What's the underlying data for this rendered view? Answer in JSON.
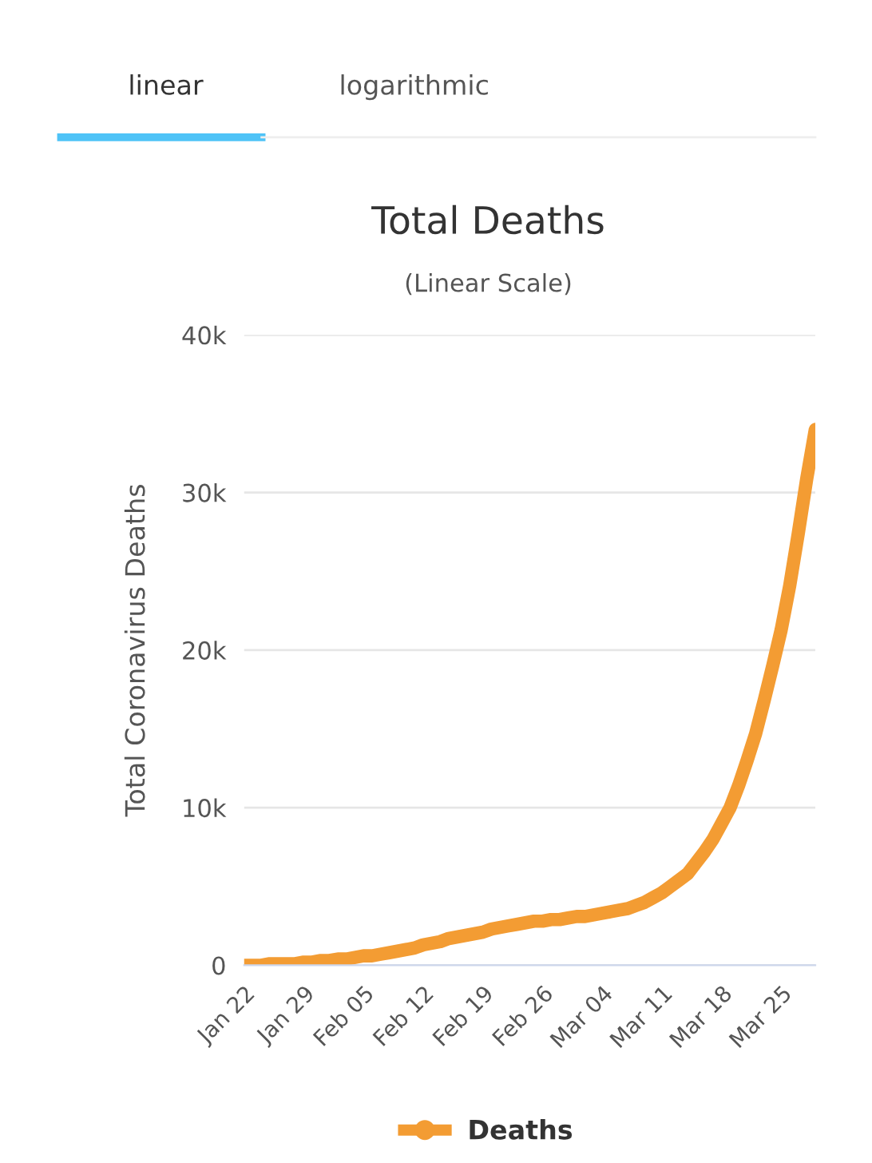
{
  "chart_data": {
    "type": "line",
    "title": "Total Deaths",
    "subtitle": "(Linear Scale)",
    "ylabel": "Total Coronavirus Deaths",
    "annotations": [
      "linear",
      "logarithmic"
    ],
    "categories": [
      "Jan 22",
      null,
      null,
      null,
      null,
      null,
      null,
      "Jan 29",
      null,
      null,
      null,
      null,
      null,
      null,
      "Feb 05",
      null,
      null,
      null,
      null,
      null,
      null,
      "Feb 12",
      null,
      null,
      null,
      null,
      null,
      null,
      "Feb 19",
      null,
      null,
      null,
      null,
      null,
      null,
      "Feb 26",
      null,
      null,
      null,
      null,
      null,
      null,
      "Mar 04",
      null,
      null,
      null,
      null,
      null,
      null,
      "Mar 11",
      null,
      null,
      null,
      null,
      null,
      null,
      "Mar 18",
      null,
      null,
      null,
      null,
      null,
      null,
      "Mar 25",
      null,
      null,
      null,
      null
    ],
    "series": [
      {
        "name": "Deaths",
        "color": "#f39c33",
        "values": [
          0,
          0,
          0,
          100,
          100,
          100,
          100,
          200,
          200,
          300,
          300,
          400,
          400,
          500,
          600,
          600,
          700,
          800,
          900,
          1000,
          1100,
          1300,
          1400,
          1500,
          1700,
          1800,
          1900,
          2000,
          2100,
          2300,
          2400,
          2500,
          2600,
          2700,
          2800,
          2800,
          2900,
          2900,
          3000,
          3100,
          3100,
          3200,
          3300,
          3400,
          3500,
          3600,
          3800,
          4000,
          4300,
          4600,
          5000,
          5400,
          5800,
          6500,
          7200,
          8000,
          9000,
          10000,
          11400,
          13000,
          14700,
          16800,
          19000,
          21300,
          24100,
          27400,
          30900,
          34000
        ]
      }
    ],
    "ylim": [
      0,
      40000
    ],
    "yticks": [
      0,
      {
        "value": 10000,
        "label": "10k"
      },
      {
        "value": 20000,
        "label": "20k"
      },
      {
        "value": 30000,
        "label": "30k"
      },
      {
        "value": 40000,
        "label": "40k"
      }
    ],
    "grid": "y",
    "legend": "bottom",
    "line_style": "solid"
  }
}
